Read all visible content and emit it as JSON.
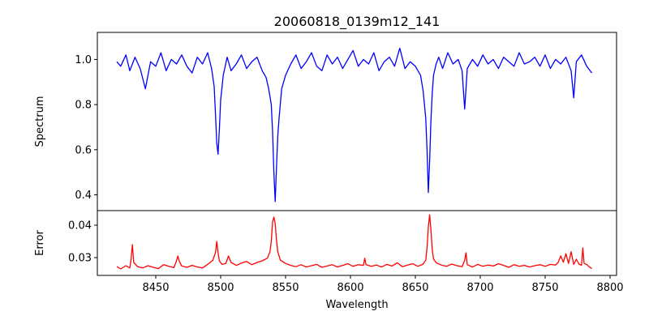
{
  "chart_data": [
    {
      "type": "line",
      "title": "20060818_0139m12_141",
      "ylabel": "Spectrum",
      "xlim": [
        8405,
        8805
      ],
      "ylim": [
        0.33,
        1.12
      ],
      "yticks": [
        "0.4",
        "0.6",
        "0.8",
        "1.0"
      ],
      "grid": false,
      "series": [
        {
          "color": "#0000ff",
          "x": [
            8420,
            8423,
            8427,
            8430,
            8434,
            8438,
            8442,
            8446,
            8450,
            8454,
            8458,
            8462,
            8466,
            8470,
            8474,
            8478,
            8482,
            8486,
            8490,
            8493,
            8495,
            8496,
            8497,
            8498,
            8499,
            8500,
            8502,
            8505,
            8508,
            8512,
            8516,
            8520,
            8524,
            8528,
            8532,
            8535,
            8537,
            8539,
            8540,
            8541,
            8542,
            8543,
            8544,
            8545,
            8547,
            8550,
            8554,
            8558,
            8562,
            8566,
            8570,
            8574,
            8578,
            8582,
            8586,
            8590,
            8594,
            8598,
            8602,
            8606,
            8610,
            8614,
            8618,
            8622,
            8626,
            8630,
            8634,
            8638,
            8642,
            8646,
            8650,
            8654,
            8656,
            8658,
            8659,
            8660,
            8661,
            8662,
            8663,
            8664,
            8666,
            8668,
            8671,
            8675,
            8679,
            8683,
            8686,
            8688,
            8690,
            8694,
            8698,
            8702,
            8706,
            8710,
            8714,
            8718,
            8722,
            8726,
            8730,
            8734,
            8738,
            8742,
            8746,
            8750,
            8754,
            8758,
            8762,
            8766,
            8770,
            8772,
            8774,
            8778,
            8782,
            8786
          ],
          "y": [
            0.99,
            0.97,
            1.02,
            0.95,
            1.01,
            0.96,
            0.87,
            0.99,
            0.97,
            1.03,
            0.95,
            1.0,
            0.98,
            1.02,
            0.97,
            0.94,
            1.01,
            0.98,
            1.03,
            0.96,
            0.88,
            0.76,
            0.63,
            0.58,
            0.69,
            0.82,
            0.93,
            1.01,
            0.95,
            0.98,
            1.02,
            0.96,
            0.99,
            1.01,
            0.95,
            0.92,
            0.87,
            0.8,
            0.68,
            0.5,
            0.37,
            0.52,
            0.66,
            0.74,
            0.87,
            0.93,
            0.98,
            1.02,
            0.96,
            0.99,
            1.03,
            0.97,
            0.95,
            1.02,
            0.98,
            1.01,
            0.96,
            1.0,
            1.04,
            0.97,
            1.0,
            0.98,
            1.03,
            0.95,
            0.99,
            1.01,
            0.97,
            1.05,
            0.96,
            0.99,
            0.97,
            0.93,
            0.86,
            0.74,
            0.6,
            0.41,
            0.55,
            0.73,
            0.85,
            0.93,
            0.98,
            1.01,
            0.96,
            1.03,
            0.98,
            1.0,
            0.95,
            0.78,
            0.96,
            1.0,
            0.97,
            1.02,
            0.98,
            1.0,
            0.96,
            1.01,
            0.99,
            0.97,
            1.03,
            0.98,
            0.99,
            1.01,
            0.97,
            1.02,
            0.96,
            1.0,
            0.98,
            1.01,
            0.95,
            0.83,
            0.99,
            1.02,
            0.97,
            0.94
          ]
        }
      ]
    },
    {
      "type": "line",
      "xlabel": "Wavelength",
      "ylabel": "Error",
      "xlim": [
        8405,
        8805
      ],
      "ylim": [
        0.0245,
        0.0445
      ],
      "xticks": [
        "8450",
        "8500",
        "8550",
        "8600",
        "8650",
        "8700",
        "8750",
        "8800"
      ],
      "yticks": [
        "0.03",
        "0.04"
      ],
      "grid": false,
      "series": [
        {
          "color": "#ff0000",
          "x": [
            8420,
            8423,
            8427,
            8430,
            8431,
            8432,
            8433,
            8436,
            8440,
            8444,
            8448,
            8452,
            8456,
            8460,
            8464,
            8466,
            8467,
            8468,
            8470,
            8474,
            8478,
            8482,
            8486,
            8490,
            8494,
            8496,
            8497,
            8498,
            8499,
            8501,
            8504,
            8506,
            8508,
            8512,
            8516,
            8520,
            8524,
            8528,
            8532,
            8536,
            8538,
            8539,
            8540,
            8541,
            8542,
            8543,
            8544,
            8546,
            8550,
            8554,
            8558,
            8562,
            8566,
            8570,
            8574,
            8578,
            8582,
            8586,
            8590,
            8594,
            8598,
            8602,
            8606,
            8610,
            8611,
            8612,
            8616,
            8620,
            8624,
            8628,
            8632,
            8636,
            8640,
            8644,
            8648,
            8652,
            8656,
            8658,
            8659,
            8660,
            8661,
            8662,
            8663,
            8664,
            8666,
            8670,
            8674,
            8678,
            8682,
            8686,
            8688,
            8689,
            8690,
            8694,
            8698,
            8702,
            8706,
            8710,
            8714,
            8718,
            8722,
            8726,
            8730,
            8734,
            8738,
            8742,
            8746,
            8750,
            8754,
            8758,
            8760,
            8762,
            8764,
            8766,
            8768,
            8770,
            8772,
            8774,
            8776,
            8778,
            8779,
            8780,
            8782,
            8784,
            8786
          ],
          "y": [
            0.0272,
            0.0265,
            0.0275,
            0.0268,
            0.0295,
            0.034,
            0.0285,
            0.0272,
            0.0268,
            0.0275,
            0.027,
            0.0266,
            0.0278,
            0.0273,
            0.0269,
            0.029,
            0.0305,
            0.029,
            0.0274,
            0.027,
            0.0276,
            0.0271,
            0.0268,
            0.0279,
            0.0292,
            0.0315,
            0.035,
            0.0315,
            0.029,
            0.0279,
            0.0282,
            0.0305,
            0.0285,
            0.0276,
            0.0283,
            0.0288,
            0.0278,
            0.0285,
            0.029,
            0.0298,
            0.0318,
            0.035,
            0.041,
            0.0425,
            0.0405,
            0.0355,
            0.0318,
            0.0292,
            0.0282,
            0.0276,
            0.0272,
            0.0278,
            0.0271,
            0.0275,
            0.0279,
            0.027,
            0.0274,
            0.0278,
            0.0271,
            0.0276,
            0.0281,
            0.0273,
            0.0278,
            0.0276,
            0.0298,
            0.0278,
            0.0273,
            0.0277,
            0.0271,
            0.0279,
            0.0274,
            0.0284,
            0.0272,
            0.0277,
            0.0281,
            0.0273,
            0.028,
            0.0292,
            0.033,
            0.0395,
            0.0432,
            0.0385,
            0.0325,
            0.0296,
            0.0284,
            0.0277,
            0.0273,
            0.028,
            0.0275,
            0.0272,
            0.0292,
            0.0315,
            0.0278,
            0.0271,
            0.0279,
            0.0273,
            0.0277,
            0.0274,
            0.0281,
            0.0276,
            0.027,
            0.0278,
            0.0273,
            0.0276,
            0.0271,
            0.0275,
            0.0278,
            0.0273,
            0.0279,
            0.0277,
            0.0285,
            0.0305,
            0.0286,
            0.0312,
            0.0282,
            0.0318,
            0.0279,
            0.0295,
            0.028,
            0.0276,
            0.033,
            0.0282,
            0.0279,
            0.0271,
            0.0266
          ]
        }
      ]
    }
  ]
}
